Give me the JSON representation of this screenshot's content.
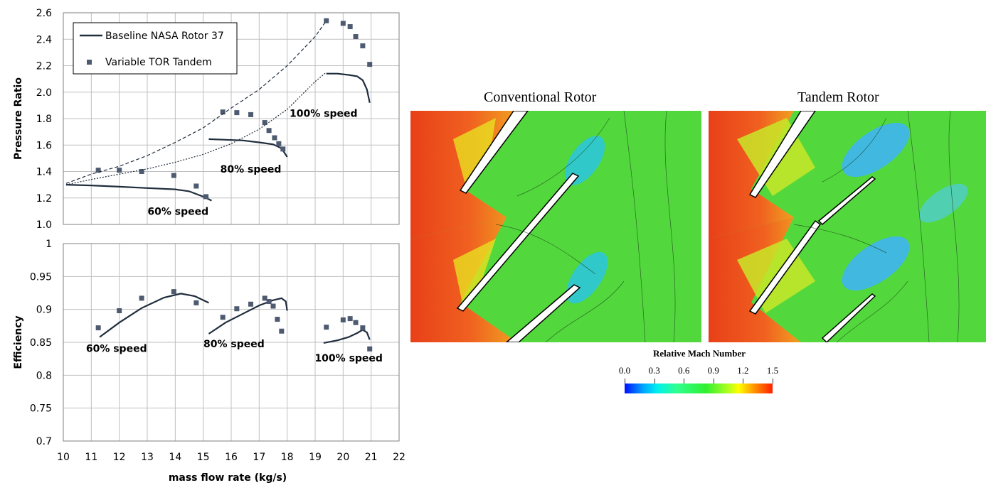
{
  "legend": {
    "baseline": "Baseline NASA Rotor 37",
    "tandem": "Variable TOR Tandem"
  },
  "chart_data": [
    {
      "type": "line",
      "ylabel": "Pressure Ratio",
      "xlabel": "",
      "xlim": [
        10,
        22
      ],
      "ylim": [
        1.0,
        2.6
      ],
      "x_ticks": [
        "10",
        "11",
        "12",
        "13",
        "14",
        "15",
        "16",
        "17",
        "18",
        "19",
        "20",
        "21",
        "22"
      ],
      "y_ticks": [
        "1.0",
        "1.2",
        "1.4",
        "1.6",
        "1.8",
        "2.0",
        "2.2",
        "2.4",
        "2.6"
      ],
      "grid": true,
      "legend_position": "top-left",
      "series": [
        {
          "name": "Baseline NASA Rotor 37",
          "style": "solid",
          "segment": "60% speed",
          "points": [
            [
              10.1,
              1.3
            ],
            [
              11.0,
              1.295
            ],
            [
              12.0,
              1.285
            ],
            [
              13.0,
              1.275
            ],
            [
              14.0,
              1.265
            ],
            [
              14.5,
              1.25
            ],
            [
              15.0,
              1.21
            ],
            [
              15.3,
              1.18
            ]
          ]
        },
        {
          "name": "Baseline NASA Rotor 37",
          "style": "solid",
          "segment": "80% speed",
          "points": [
            [
              15.2,
              1.645
            ],
            [
              15.8,
              1.64
            ],
            [
              16.4,
              1.635
            ],
            [
              17.0,
              1.62
            ],
            [
              17.5,
              1.605
            ],
            [
              17.8,
              1.575
            ],
            [
              18.0,
              1.51
            ]
          ]
        },
        {
          "name": "Baseline NASA Rotor 37",
          "style": "solid",
          "segment": "100% speed",
          "points": [
            [
              19.4,
              2.14
            ],
            [
              19.8,
              2.14
            ],
            [
              20.2,
              2.13
            ],
            [
              20.5,
              2.12
            ],
            [
              20.7,
              2.09
            ],
            [
              20.85,
              2.02
            ],
            [
              20.95,
              1.92
            ]
          ]
        },
        {
          "name": "Variable TOR Tandem",
          "points": [
            [
              11.25,
              1.41
            ],
            [
              12.0,
              1.41
            ],
            [
              12.8,
              1.4
            ],
            [
              13.95,
              1.37
            ],
            [
              14.75,
              1.29
            ],
            [
              15.1,
              1.21
            ],
            [
              15.7,
              1.85
            ],
            [
              16.2,
              1.845
            ],
            [
              16.7,
              1.83
            ],
            [
              17.2,
              1.77
            ],
            [
              17.35,
              1.71
            ],
            [
              17.55,
              1.655
            ],
            [
              17.7,
              1.61
            ],
            [
              17.85,
              1.57
            ],
            [
              19.4,
              2.54
            ],
            [
              20.0,
              2.52
            ],
            [
              20.25,
              2.495
            ],
            [
              20.45,
              2.42
            ],
            [
              20.7,
              2.35
            ],
            [
              20.95,
              2.21
            ]
          ]
        },
        {
          "style": "dashed",
          "points": [
            [
              10.1,
              1.31
            ],
            [
              11.0,
              1.38
            ],
            [
              12.0,
              1.44
            ],
            [
              13.0,
              1.52
            ],
            [
              14.0,
              1.62
            ],
            [
              15.0,
              1.73
            ],
            [
              16.0,
              1.88
            ],
            [
              17.0,
              2.02
            ],
            [
              18.0,
              2.2
            ],
            [
              19.0,
              2.42
            ],
            [
              19.4,
              2.54
            ]
          ]
        },
        {
          "style": "dotted",
          "points": [
            [
              10.1,
              1.3
            ],
            [
              11.0,
              1.34
            ],
            [
              12.0,
              1.38
            ],
            [
              13.0,
              1.42
            ],
            [
              14.0,
              1.47
            ],
            [
              15.0,
              1.53
            ],
            [
              16.0,
              1.61
            ],
            [
              17.0,
              1.72
            ],
            [
              18.0,
              1.87
            ],
            [
              19.0,
              2.08
            ],
            [
              19.4,
              2.15
            ]
          ]
        }
      ],
      "annotations": [
        {
          "text": "60% speed",
          "x": 14.1,
          "y": 1.1
        },
        {
          "text": "80% speed",
          "x": 16.7,
          "y": 1.42
        },
        {
          "text": "100% speed",
          "x": 19.3,
          "y": 1.84
        }
      ]
    },
    {
      "type": "line",
      "ylabel": "Efficiency",
      "xlabel": "mass flow rate (kg/s)",
      "xlim": [
        10,
        22
      ],
      "ylim": [
        0.7,
        1.0
      ],
      "x_ticks": [
        "10",
        "11",
        "12",
        "13",
        "14",
        "15",
        "16",
        "17",
        "18",
        "19",
        "20",
        "21",
        "22"
      ],
      "y_ticks": [
        "0.7",
        "0.75",
        "0.8",
        "0.85",
        "0.9",
        "0.95",
        "1"
      ],
      "grid": true,
      "series": [
        {
          "name": "Baseline NASA Rotor 37",
          "style": "solid",
          "segment": "60% speed",
          "points": [
            [
              11.3,
              0.858
            ],
            [
              12.0,
              0.88
            ],
            [
              12.8,
              0.902
            ],
            [
              13.6,
              0.918
            ],
            [
              14.2,
              0.924
            ],
            [
              14.7,
              0.92
            ],
            [
              15.2,
              0.91
            ]
          ]
        },
        {
          "name": "Baseline NASA Rotor 37",
          "style": "solid",
          "segment": "80% speed",
          "points": [
            [
              15.2,
              0.863
            ],
            [
              15.8,
              0.88
            ],
            [
              16.4,
              0.893
            ],
            [
              17.0,
              0.906
            ],
            [
              17.5,
              0.914
            ],
            [
              17.8,
              0.917
            ],
            [
              17.95,
              0.912
            ],
            [
              18.0,
              0.898
            ]
          ]
        },
        {
          "name": "Baseline NASA Rotor 37",
          "style": "solid",
          "segment": "100% speed",
          "points": [
            [
              19.3,
              0.849
            ],
            [
              19.8,
              0.853
            ],
            [
              20.2,
              0.858
            ],
            [
              20.5,
              0.864
            ],
            [
              20.7,
              0.869
            ],
            [
              20.85,
              0.865
            ],
            [
              20.95,
              0.854
            ]
          ]
        },
        {
          "name": "Variable TOR Tandem",
          "points": [
            [
              11.25,
              0.872
            ],
            [
              12.0,
              0.898
            ],
            [
              12.8,
              0.917
            ],
            [
              13.95,
              0.927
            ],
            [
              14.75,
              0.91
            ],
            [
              15.7,
              0.888
            ],
            [
              16.2,
              0.901
            ],
            [
              16.7,
              0.908
            ],
            [
              17.2,
              0.917
            ],
            [
              17.35,
              0.912
            ],
            [
              17.5,
              0.905
            ],
            [
              17.65,
              0.885
            ],
            [
              17.8,
              0.867
            ],
            [
              19.4,
              0.873
            ],
            [
              20.0,
              0.884
            ],
            [
              20.25,
              0.886
            ],
            [
              20.45,
              0.88
            ],
            [
              20.7,
              0.872
            ],
            [
              20.95,
              0.84
            ]
          ]
        }
      ],
      "annotations": [
        {
          "text": "60% speed",
          "x": 11.9,
          "y": 0.841
        },
        {
          "text": "80% speed",
          "x": 16.1,
          "y": 0.848
        },
        {
          "text": "100% speed",
          "x": 20.2,
          "y": 0.826
        }
      ]
    }
  ],
  "cfd": {
    "left_title": "Conventional Rotor",
    "right_title": "Tandem Rotor",
    "colorbar_title": "Relative Mach Number",
    "colorbar_ticks": [
      "0.0",
      "0.3",
      "0.6",
      "0.9",
      "1.2",
      "1.5"
    ],
    "colorbar_values": [
      0.0,
      0.3,
      0.6,
      0.9,
      1.2,
      1.5
    ]
  },
  "colors": {
    "baseline": "#1f2d3d",
    "tandem": "#4d5a70",
    "grid": "#bfbfbf"
  }
}
